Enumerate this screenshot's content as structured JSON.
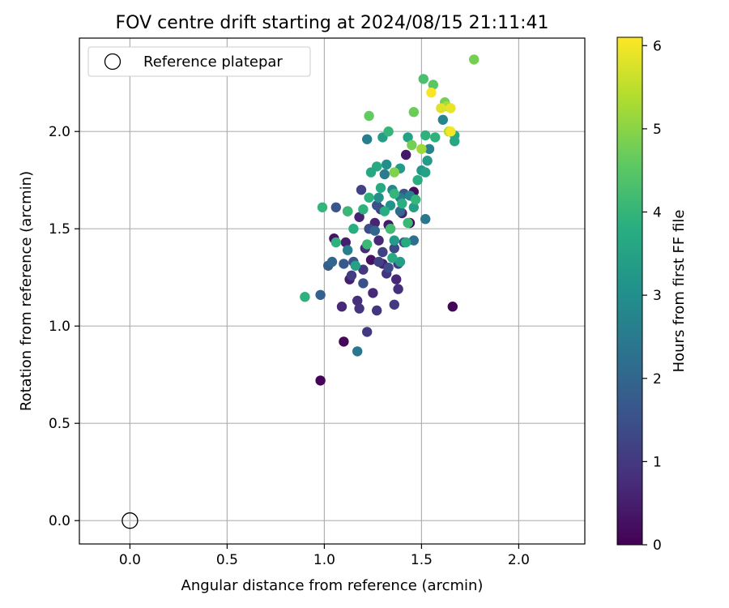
{
  "chart_data": {
    "type": "scatter",
    "title": "FOV centre drift starting at 2024/08/15 21:11:41",
    "xlabel": "Angular distance from reference (arcmin)",
    "ylabel": "Rotation from reference (arcmin)",
    "xlim": [
      -0.26,
      2.34
    ],
    "ylim": [
      -0.12,
      2.48
    ],
    "xticks": [
      "0.0",
      "0.5",
      "1.0",
      "1.5",
      "2.0"
    ],
    "yticks": [
      "0.0",
      "0.5",
      "1.0",
      "1.5",
      "2.0"
    ],
    "grid": true,
    "legend": {
      "placement": "top-left",
      "label": "Reference platepar"
    },
    "reference_point": {
      "x": 0.0,
      "y": 0.0
    },
    "colorbar": {
      "label": "Hours from first FF file",
      "range": [
        0,
        6.1
      ],
      "ticks": [
        "0",
        "1",
        "2",
        "3",
        "4",
        "5",
        "6"
      ],
      "colormap": "viridis"
    },
    "points": [
      {
        "x": 0.98,
        "y": 0.72,
        "c": 0.05
      },
      {
        "x": 1.1,
        "y": 0.92,
        "c": 0.1
      },
      {
        "x": 1.66,
        "y": 1.1,
        "c": 0.05
      },
      {
        "x": 1.44,
        "y": 1.53,
        "c": 0.1
      },
      {
        "x": 1.46,
        "y": 1.69,
        "c": 0.2
      },
      {
        "x": 1.42,
        "y": 1.88,
        "c": 0.4
      },
      {
        "x": 1.05,
        "y": 1.45,
        "c": 0.3
      },
      {
        "x": 1.11,
        "y": 1.43,
        "c": 0.5
      },
      {
        "x": 1.18,
        "y": 1.56,
        "c": 0.6
      },
      {
        "x": 1.24,
        "y": 1.34,
        "c": 0.3
      },
      {
        "x": 1.3,
        "y": 1.32,
        "c": 0.6
      },
      {
        "x": 1.37,
        "y": 1.24,
        "c": 0.7
      },
      {
        "x": 1.33,
        "y": 1.52,
        "c": 0.4
      },
      {
        "x": 1.4,
        "y": 1.58,
        "c": 0.6
      },
      {
        "x": 1.25,
        "y": 1.17,
        "c": 0.7
      },
      {
        "x": 1.09,
        "y": 1.1,
        "c": 0.7
      },
      {
        "x": 1.17,
        "y": 1.13,
        "c": 0.8
      },
      {
        "x": 1.13,
        "y": 1.24,
        "c": 0.5
      },
      {
        "x": 1.21,
        "y": 1.4,
        "c": 0.8
      },
      {
        "x": 1.28,
        "y": 1.44,
        "c": 0.7
      },
      {
        "x": 1.26,
        "y": 1.53,
        "c": 0.6
      },
      {
        "x": 1.32,
        "y": 1.27,
        "c": 0.9
      },
      {
        "x": 1.38,
        "y": 1.19,
        "c": 0.8
      },
      {
        "x": 1.18,
        "y": 1.09,
        "c": 0.9
      },
      {
        "x": 1.27,
        "y": 1.08,
        "c": 0.9
      },
      {
        "x": 1.22,
        "y": 0.97,
        "c": 1.0
      },
      {
        "x": 1.36,
        "y": 1.11,
        "c": 1.0
      },
      {
        "x": 1.2,
        "y": 1.29,
        "c": 1.0
      },
      {
        "x": 1.14,
        "y": 1.26,
        "c": 1.1
      },
      {
        "x": 1.29,
        "y": 1.6,
        "c": 1.1
      },
      {
        "x": 1.19,
        "y": 1.7,
        "c": 1.2
      },
      {
        "x": 1.34,
        "y": 1.5,
        "c": 1.2
      },
      {
        "x": 1.28,
        "y": 1.33,
        "c": 1.2
      },
      {
        "x": 1.38,
        "y": 1.32,
        "c": 1.1
      },
      {
        "x": 1.41,
        "y": 1.43,
        "c": 1.3
      },
      {
        "x": 1.12,
        "y": 1.59,
        "c": 1.4
      },
      {
        "x": 1.23,
        "y": 1.5,
        "c": 1.4
      },
      {
        "x": 1.3,
        "y": 1.38,
        "c": 1.2
      },
      {
        "x": 1.36,
        "y": 1.4,
        "c": 1.3
      },
      {
        "x": 1.15,
        "y": 1.33,
        "c": 1.5
      },
      {
        "x": 1.06,
        "y": 1.61,
        "c": 1.6
      },
      {
        "x": 1.2,
        "y": 1.22,
        "c": 1.5
      },
      {
        "x": 1.27,
        "y": 1.62,
        "c": 1.5
      },
      {
        "x": 1.41,
        "y": 1.68,
        "c": 1.6
      },
      {
        "x": 1.33,
        "y": 1.3,
        "c": 1.4
      },
      {
        "x": 1.1,
        "y": 1.32,
        "c": 1.7
      },
      {
        "x": 1.02,
        "y": 1.31,
        "c": 1.8
      },
      {
        "x": 0.98,
        "y": 1.16,
        "c": 1.9
      },
      {
        "x": 1.04,
        "y": 1.33,
        "c": 2.0
      },
      {
        "x": 1.26,
        "y": 1.49,
        "c": 2.0
      },
      {
        "x": 1.39,
        "y": 1.59,
        "c": 2.1
      },
      {
        "x": 1.46,
        "y": 1.44,
        "c": 2.2
      },
      {
        "x": 1.17,
        "y": 0.87,
        "c": 2.4
      },
      {
        "x": 1.52,
        "y": 1.55,
        "c": 2.4
      },
      {
        "x": 1.31,
        "y": 1.78,
        "c": 2.5
      },
      {
        "x": 1.22,
        "y": 1.96,
        "c": 2.6
      },
      {
        "x": 1.39,
        "y": 1.66,
        "c": 2.5
      },
      {
        "x": 1.12,
        "y": 1.39,
        "c": 2.6
      },
      {
        "x": 1.54,
        "y": 1.91,
        "c": 2.7
      },
      {
        "x": 1.61,
        "y": 2.06,
        "c": 2.8
      },
      {
        "x": 1.44,
        "y": 1.67,
        "c": 2.7
      },
      {
        "x": 1.35,
        "y": 1.7,
        "c": 2.8
      },
      {
        "x": 1.32,
        "y": 1.83,
        "c": 3.0
      },
      {
        "x": 1.28,
        "y": 1.66,
        "c": 3.0
      },
      {
        "x": 1.34,
        "y": 1.62,
        "c": 3.1
      },
      {
        "x": 1.5,
        "y": 1.8,
        "c": 3.2
      },
      {
        "x": 1.53,
        "y": 1.85,
        "c": 3.3
      },
      {
        "x": 1.39,
        "y": 1.81,
        "c": 3.3
      },
      {
        "x": 1.46,
        "y": 1.61,
        "c": 3.4
      },
      {
        "x": 1.36,
        "y": 1.44,
        "c": 3.3
      },
      {
        "x": 1.39,
        "y": 1.33,
        "c": 3.4
      },
      {
        "x": 1.16,
        "y": 1.31,
        "c": 3.5
      },
      {
        "x": 1.3,
        "y": 1.97,
        "c": 3.4
      },
      {
        "x": 1.43,
        "y": 1.97,
        "c": 3.5
      },
      {
        "x": 1.52,
        "y": 1.79,
        "c": 3.5
      },
      {
        "x": 1.67,
        "y": 1.95,
        "c": 3.6
      },
      {
        "x": 1.67,
        "y": 1.98,
        "c": 3.6
      },
      {
        "x": 1.27,
        "y": 1.82,
        "c": 3.7
      },
      {
        "x": 1.24,
        "y": 1.79,
        "c": 3.6
      },
      {
        "x": 1.35,
        "y": 1.35,
        "c": 3.7
      },
      {
        "x": 1.42,
        "y": 1.43,
        "c": 3.7
      },
      {
        "x": 1.29,
        "y": 1.71,
        "c": 3.7
      },
      {
        "x": 1.4,
        "y": 1.63,
        "c": 3.8
      },
      {
        "x": 1.48,
        "y": 1.75,
        "c": 3.8
      },
      {
        "x": 1.52,
        "y": 1.98,
        "c": 3.9
      },
      {
        "x": 1.57,
        "y": 1.97,
        "c": 3.9
      },
      {
        "x": 1.31,
        "y": 1.59,
        "c": 3.8
      },
      {
        "x": 1.2,
        "y": 1.6,
        "c": 3.9
      },
      {
        "x": 1.15,
        "y": 1.5,
        "c": 3.8
      },
      {
        "x": 1.06,
        "y": 1.43,
        "c": 3.9
      },
      {
        "x": 1.23,
        "y": 1.66,
        "c": 3.9
      },
      {
        "x": 1.33,
        "y": 2.0,
        "c": 4.0
      },
      {
        "x": 1.36,
        "y": 1.68,
        "c": 4.0
      },
      {
        "x": 1.47,
        "y": 1.65,
        "c": 4.0
      },
      {
        "x": 1.43,
        "y": 1.53,
        "c": 4.1
      },
      {
        "x": 0.9,
        "y": 1.15,
        "c": 3.9
      },
      {
        "x": 0.99,
        "y": 1.61,
        "c": 4.0
      },
      {
        "x": 1.12,
        "y": 1.59,
        "c": 4.1
      },
      {
        "x": 1.22,
        "y": 1.42,
        "c": 4.1
      },
      {
        "x": 1.34,
        "y": 1.5,
        "c": 4.2
      },
      {
        "x": 1.51,
        "y": 2.27,
        "c": 4.3
      },
      {
        "x": 1.56,
        "y": 2.24,
        "c": 4.5
      },
      {
        "x": 1.23,
        "y": 2.08,
        "c": 4.6
      },
      {
        "x": 1.46,
        "y": 2.1,
        "c": 4.7
      },
      {
        "x": 1.62,
        "y": 2.15,
        "c": 4.8
      },
      {
        "x": 1.77,
        "y": 2.37,
        "c": 4.8
      },
      {
        "x": 1.45,
        "y": 1.93,
        "c": 4.8
      },
      {
        "x": 1.36,
        "y": 1.79,
        "c": 4.9
      },
      {
        "x": 1.5,
        "y": 1.91,
        "c": 5.2
      },
      {
        "x": 1.63,
        "y": 2.13,
        "c": 5.3
      },
      {
        "x": 1.64,
        "y": 2.0,
        "c": 5.4
      },
      {
        "x": 1.6,
        "y": 2.12,
        "c": 5.8
      },
      {
        "x": 1.65,
        "y": 2.12,
        "c": 5.9
      },
      {
        "x": 1.55,
        "y": 2.2,
        "c": 6.05
      },
      {
        "x": 1.65,
        "y": 2.0,
        "c": 6.0
      }
    ]
  }
}
